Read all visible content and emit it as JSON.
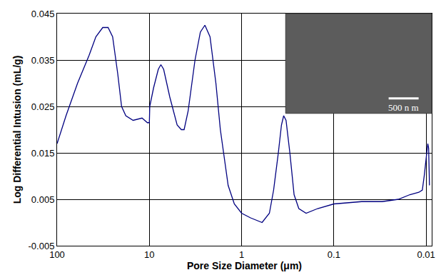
{
  "chart_data": {
    "type": "line",
    "x_label": "Pore Size Diameter (μm)",
    "y_label": "Log Differential Intusion (mL/g)",
    "x": [
      100,
      80,
      60,
      45,
      38,
      32,
      28,
      25,
      22,
      20,
      18,
      15,
      12,
      10.5,
      10,
      9.9,
      9,
      8,
      7.5,
      7,
      6,
      5,
      4.5,
      4.2,
      3.8,
      3.2,
      2.8,
      2.5,
      2.2,
      1.9,
      1.7,
      1.4,
      1.2,
      1.0,
      0.8,
      0.65,
      0.6,
      0.5,
      0.45,
      0.4,
      0.37,
      0.35,
      0.33,
      0.3,
      0.27,
      0.24,
      0.2,
      0.15,
      0.1,
      0.05,
      0.03,
      0.02,
      0.015,
      0.012,
      0.011,
      0.0105,
      0.0098,
      0.0096,
      0.0094,
      0.0092
    ],
    "values": [
      0.017,
      0.023,
      0.03,
      0.036,
      0.04,
      0.042,
      0.042,
      0.04,
      0.032,
      0.025,
      0.023,
      0.022,
      0.0225,
      0.0215,
      0.0215,
      0.025,
      0.029,
      0.033,
      0.034,
      0.033,
      0.027,
      0.021,
      0.02,
      0.02,
      0.024,
      0.035,
      0.041,
      0.0425,
      0.04,
      0.03,
      0.02,
      0.008,
      0.004,
      0.002,
      0.001,
      0.0003,
      0.0,
      0.002,
      0.007,
      0.015,
      0.021,
      0.023,
      0.022,
      0.015,
      0.006,
      0.003,
      0.002,
      0.003,
      0.004,
      0.0045,
      0.0045,
      0.005,
      0.006,
      0.0065,
      0.007,
      0.01,
      0.016,
      0.017,
      0.016,
      0.008
    ],
    "color": "#000080",
    "xlim": [
      100,
      0.0087
    ],
    "ylim": [
      -0.005,
      0.045
    ],
    "xticks": [
      100,
      10,
      1,
      0.1,
      0.01
    ],
    "yticks": [
      -0.005,
      0.005,
      0.015,
      0.025,
      0.035,
      0.045
    ],
    "log": "x",
    "grid": true,
    "annotations": [
      "500 n m"
    ]
  }
}
